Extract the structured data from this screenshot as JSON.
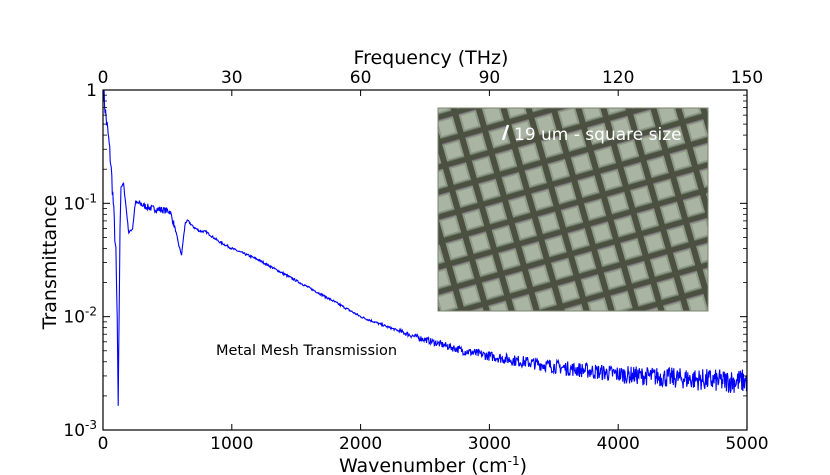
{
  "chart_data": {
    "type": "line",
    "title": "",
    "xlabel": "Wavenumber (cm⁻¹)",
    "ylabel": "Transmittance",
    "top_xlabel": "Frequency (THz)",
    "xlim": [
      0,
      5000
    ],
    "ylim": [
      0.001,
      1
    ],
    "yscale": "log",
    "top_xlim": [
      0,
      150
    ],
    "x_ticks": [
      0,
      1000,
      2000,
      3000,
      4000,
      5000
    ],
    "x_tick_labels": [
      "0",
      "1000",
      "2000",
      "3000",
      "4000",
      "5000"
    ],
    "top_x_ticks": [
      0,
      30,
      60,
      90,
      120,
      150
    ],
    "top_x_tick_labels": [
      "0",
      "30",
      "60",
      "90",
      "120",
      "150"
    ],
    "y_ticks": [
      1,
      0.1,
      0.01,
      0.001
    ],
    "y_tick_labels": [
      {
        "base": "1",
        "exp": ""
      },
      {
        "base": "10",
        "exp": "-1"
      },
      {
        "base": "10",
        "exp": "-2"
      },
      {
        "base": "10",
        "exp": "-3"
      }
    ],
    "grid": false,
    "series": [
      {
        "name": "Metal Mesh Transmission",
        "color": "#0000ff",
        "x": [
          5,
          20,
          40,
          60,
          80,
          100,
          110,
          118,
          125,
          132,
          140,
          160,
          180,
          200,
          230,
          250,
          280,
          320,
          380,
          450,
          520,
          560,
          590,
          610,
          625,
          640,
          660,
          700,
          750,
          800,
          900,
          1000,
          1200,
          1400,
          1600,
          1800,
          2000,
          2200,
          2400,
          2600,
          2800,
          3000,
          3200,
          3400,
          3600,
          3800,
          4000,
          4200,
          4400,
          4600,
          4800,
          5000
        ],
        "y": [
          0.95,
          0.62,
          0.4,
          0.23,
          0.1,
          0.035,
          0.01,
          0.0016,
          0.01,
          0.06,
          0.14,
          0.148,
          0.09,
          0.055,
          0.06,
          0.1,
          0.1,
          0.095,
          0.09,
          0.088,
          0.085,
          0.06,
          0.042,
          0.035,
          0.05,
          0.068,
          0.07,
          0.062,
          0.057,
          0.056,
          0.046,
          0.04,
          0.032,
          0.024,
          0.018,
          0.0135,
          0.01,
          0.0082,
          0.0068,
          0.0058,
          0.005,
          0.0045,
          0.0041,
          0.0038,
          0.0035,
          0.0033,
          0.0031,
          0.003,
          0.0029,
          0.0028,
          0.0027,
          0.0027
        ]
      }
    ],
    "annotations": [
      {
        "text": "Metal Mesh Transmission",
        "x": 870,
        "y": 0.0053
      }
    ],
    "inset": {
      "label": "19 um - square size",
      "content": "micrograph of metal mesh with square openings"
    }
  }
}
